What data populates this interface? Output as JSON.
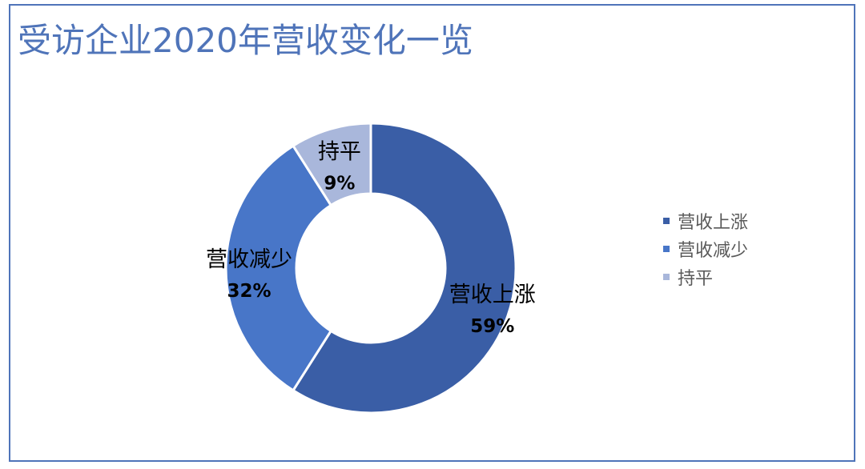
{
  "chart_data": {
    "type": "pie",
    "style": "donut",
    "title": "受访企业2020年营收变化一览",
    "categories": [
      "营收上涨",
      "营收减少",
      "持平"
    ],
    "values": [
      59,
      32,
      9
    ],
    "labels": [
      "59%",
      "32%",
      "9%"
    ],
    "colors": [
      "#3a5ea6",
      "#4876c8",
      "#a9b7db"
    ],
    "legend_position": "right"
  }
}
